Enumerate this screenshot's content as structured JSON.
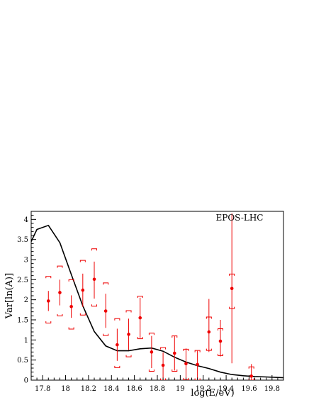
{
  "chart_data": {
    "type": "scatter",
    "xlabel": "log(E/eV)",
    "ylabel": "Var[ln(A)]",
    "xlim": [
      17.7,
      19.9
    ],
    "ylim": [
      0,
      4.2
    ],
    "x_ticks": [
      17.8,
      18,
      18.2,
      18.4,
      18.6,
      18.8,
      19,
      19.2,
      19.4,
      19.6,
      19.8
    ],
    "x_tick_labels": [
      "17.8",
      "18",
      "18.2",
      "18.4",
      "18.6",
      "18.8",
      "19",
      "19.2",
      "19.4",
      "19.6",
      "19.8"
    ],
    "y_ticks": [
      0,
      0.5,
      1,
      1.5,
      2,
      2.5,
      3,
      3.5,
      4
    ],
    "y_tick_labels": [
      "0",
      "0.5",
      "1",
      "1.5",
      "2",
      "2.5",
      "3",
      "3.5",
      "4"
    ],
    "grid": false,
    "legend_text": "EPOS-LHC",
    "legend_position": "top-right",
    "colors": {
      "points": "#ee0000",
      "curve": "#000000",
      "axes": "#000000"
    },
    "series": [
      {
        "kind": "points_with_errors",
        "x": [
          17.85,
          17.95,
          18.05,
          18.15,
          18.25,
          18.35,
          18.45,
          18.55,
          18.65,
          18.75,
          18.85,
          18.95,
          19.05,
          19.15,
          19.25,
          19.35,
          19.45,
          19.62
        ],
        "y": [
          1.97,
          2.18,
          1.83,
          2.24,
          2.51,
          1.72,
          0.88,
          1.14,
          1.55,
          0.7,
          0.37,
          0.67,
          0.41,
          0.39,
          1.2,
          0.97,
          2.28,
          0.1
        ],
        "stat_low": [
          1.72,
          1.86,
          1.55,
          1.82,
          2.03,
          1.3,
          0.48,
          0.75,
          1.05,
          0.3,
          0.05,
          0.24,
          0.03,
          0.05,
          0.7,
          0.59,
          0.42,
          0.0
        ],
        "stat_high": [
          2.22,
          2.5,
          2.11,
          2.65,
          2.95,
          2.15,
          1.28,
          1.53,
          2.05,
          1.1,
          0.69,
          1.1,
          0.79,
          0.73,
          2.02,
          1.5,
          4.15,
          0.4
        ],
        "sys_low": [
          1.42,
          1.6,
          1.27,
          1.62,
          1.84,
          1.11,
          0.31,
          0.58,
          1.03,
          0.22,
          0.0,
          0.22,
          0.01,
          0.0,
          0.74,
          0.61,
          1.78,
          0.0
        ],
        "sys_high": [
          2.58,
          2.84,
          2.5,
          2.98,
          3.27,
          2.42,
          1.53,
          1.73,
          2.09,
          1.17,
          0.81,
          1.1,
          0.77,
          0.74,
          1.57,
          1.28,
          2.64,
          0.33
        ]
      },
      {
        "kind": "curve",
        "x": [
          17.7,
          17.75,
          17.85,
          17.95,
          18.05,
          18.15,
          18.25,
          18.35,
          18.45,
          18.55,
          18.65,
          18.75,
          18.85,
          18.95,
          19.05,
          19.15,
          19.25,
          19.35,
          19.45,
          19.55,
          19.65,
          19.75,
          19.9
        ],
        "y": [
          3.45,
          3.75,
          3.85,
          3.42,
          2.63,
          1.85,
          1.21,
          0.85,
          0.73,
          0.73,
          0.78,
          0.8,
          0.72,
          0.57,
          0.45,
          0.36,
          0.29,
          0.2,
          0.14,
          0.11,
          0.09,
          0.08,
          0.06
        ]
      }
    ]
  }
}
